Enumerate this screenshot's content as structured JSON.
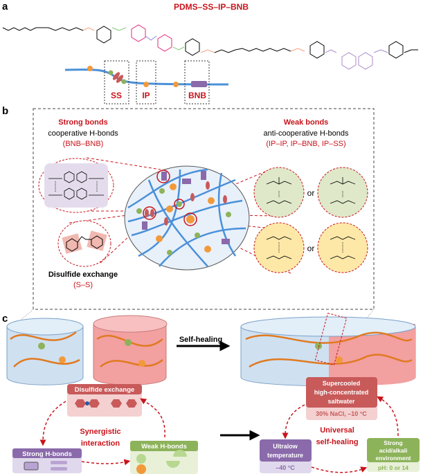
{
  "panel_a": {
    "label": "a",
    "title": "PDMS–SS–IP–BNB",
    "segments": [
      "SS",
      "IP",
      "BNB"
    ]
  },
  "panel_b": {
    "label": "b",
    "strong": {
      "title": "Strong  bonds",
      "subtitle": "cooperative  H-bonds",
      "pairs": "(BNB–BNB)"
    },
    "weak": {
      "title": "Weak bonds",
      "subtitle": "anti-cooperative  H-bonds",
      "pairs": "(IP–IP, IP–BNB, IP–SS)"
    },
    "or1": "or",
    "or2": "or",
    "disulfide": {
      "title": "Disulfide exchange",
      "pair": "(S–S)"
    }
  },
  "panel_c": {
    "label": "c",
    "arrow_label": "Self-healing",
    "cycle_left": {
      "center": [
        "Synergistic",
        "interaction"
      ],
      "disulfide": "Disulfide exchange",
      "strong": "Strong H-bonds",
      "weak": "Weak H-bonds"
    },
    "cycle_right": {
      "center": [
        "Universal",
        "self-healing"
      ],
      "saltwater": {
        "title": [
          "Supercooled",
          "high-concentrated",
          "saltwater"
        ],
        "condition": "30% NaCl, –10 °C"
      },
      "lowtemp": {
        "title": [
          "Ultralow",
          "temperature"
        ],
        "condition": "–40 °C"
      },
      "acid": {
        "title": [
          "Strong",
          "acid/alkali",
          "environment"
        ],
        "condition": "pH: 0 or 14"
      }
    }
  },
  "colors": {
    "red": "#c8141c",
    "blue": "#4a90d9",
    "purple": "#8a6aaa",
    "green": "#8db35a",
    "orange": "#f29a3a",
    "pink": "#c85a5a"
  }
}
